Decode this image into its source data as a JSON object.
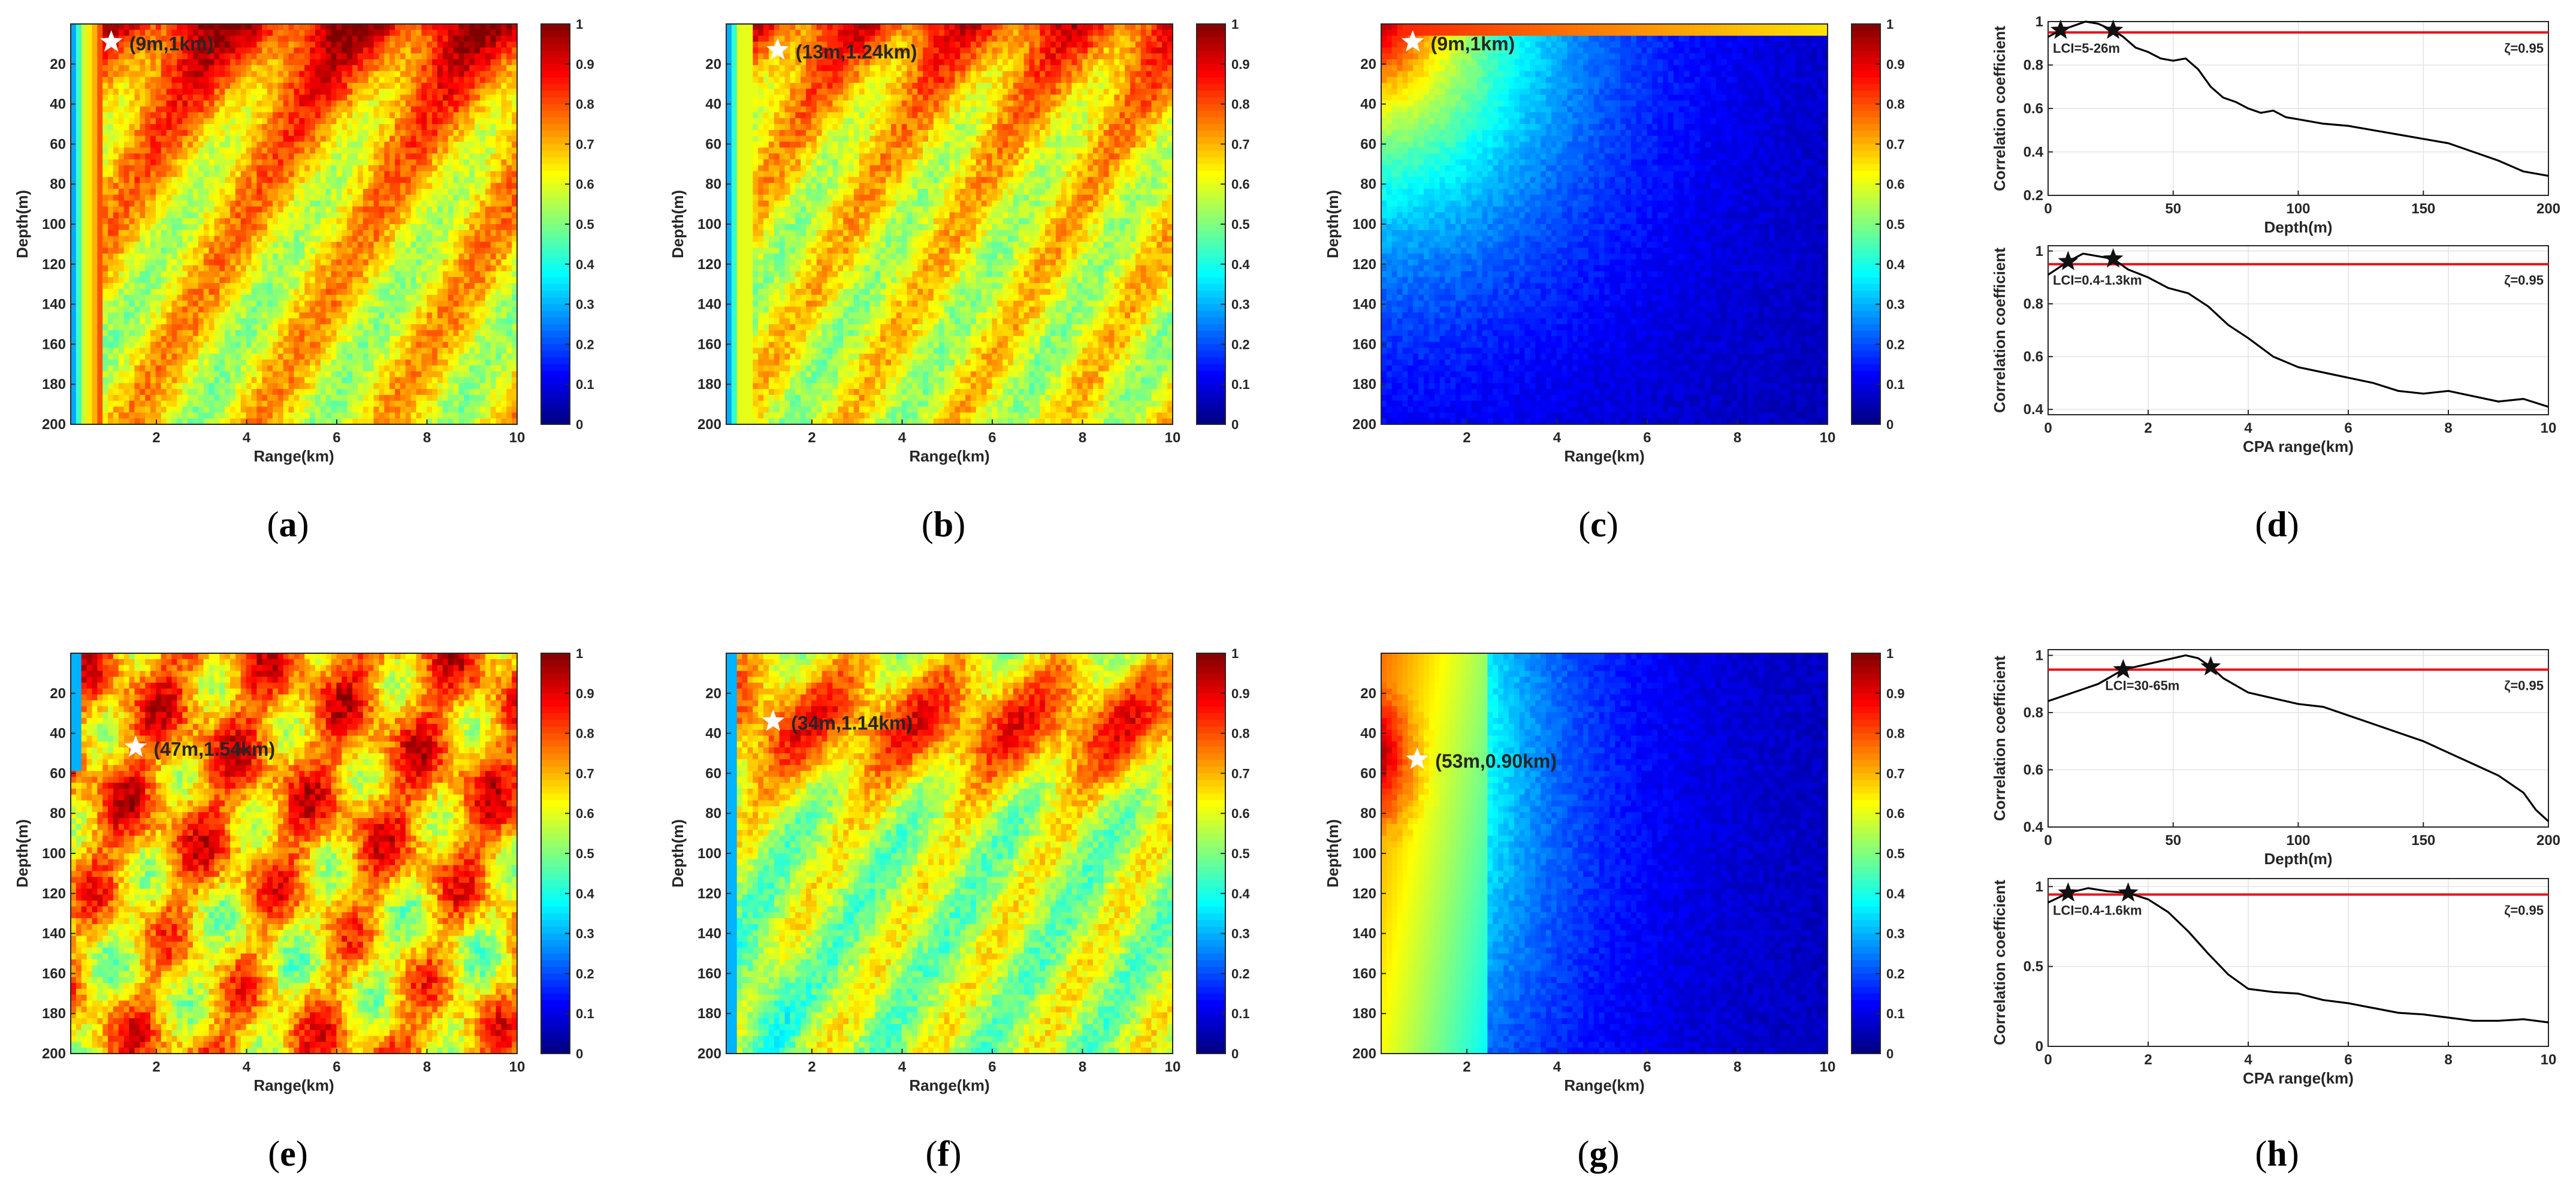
{
  "chart_data": {
    "type": "heatmap",
    "colormap": "jet",
    "colorbar_ticks": [
      "0",
      "0.1",
      "0.2",
      "0.3",
      "0.4",
      "0.5",
      "0.6",
      "0.7",
      "0.8",
      "0.9",
      "1"
    ],
    "heatmaps": [
      {
        "id": "a",
        "caption": [
          "(",
          "a",
          ")"
        ],
        "xlabel": "Range(km)",
        "ylabel": "Depth(m)",
        "xlim": [
          0.1,
          10
        ],
        "ylim": [
          200,
          0
        ],
        "xticks": [
          2,
          4,
          6,
          8,
          10
        ],
        "yticks": [
          20,
          40,
          60,
          80,
          100,
          120,
          140,
          160,
          180,
          200
        ],
        "pattern": "high-near-surface",
        "star": {
          "range_km": 1.0,
          "depth_m": 9,
          "label": "(9m,1km)"
        }
      },
      {
        "id": "b",
        "caption": [
          "(",
          "b",
          ")"
        ],
        "xlabel": "Range(km)",
        "ylabel": "Depth(m)",
        "xlim": [
          0.1,
          10
        ],
        "ylim": [
          200,
          0
        ],
        "xticks": [
          2,
          4,
          6,
          8,
          10
        ],
        "yticks": [
          20,
          40,
          60,
          80,
          100,
          120,
          140,
          160,
          180,
          200
        ],
        "pattern": "medium-high",
        "star": {
          "range_km": 1.24,
          "depth_m": 13,
          "label": "(13m,1.24km)"
        }
      },
      {
        "id": "c",
        "caption": [
          "(",
          "c",
          ")"
        ],
        "xlabel": "Range(km)",
        "ylabel": "Depth(m)",
        "xlim": [
          0.1,
          10
        ],
        "ylim": [
          200,
          0
        ],
        "xticks": [
          2,
          4,
          6,
          8,
          10
        ],
        "yticks": [
          20,
          40,
          60,
          80,
          100,
          120,
          140,
          160,
          180,
          200
        ],
        "pattern": "decay",
        "star": {
          "range_km": 0.8,
          "depth_m": 9,
          "label": "(9m,1km)"
        }
      },
      {
        "id": "e",
        "caption": [
          "(",
          "e",
          ")"
        ],
        "xlabel": "Range(km)",
        "ylabel": "Depth(m)",
        "xlim": [
          0.1,
          10
        ],
        "ylim": [
          200,
          0
        ],
        "xticks": [
          2,
          4,
          6,
          8,
          10
        ],
        "yticks": [
          20,
          40,
          60,
          80,
          100,
          120,
          140,
          160,
          180,
          200
        ],
        "pattern": "high-broad",
        "star": {
          "range_km": 1.54,
          "depth_m": 47,
          "label": "(47m,1.54km)"
        }
      },
      {
        "id": "f",
        "caption": [
          "(",
          "f",
          ")"
        ],
        "xlabel": "Range(km)",
        "ylabel": "Depth(m)",
        "xlim": [
          0.1,
          10
        ],
        "ylim": [
          200,
          0
        ],
        "xticks": [
          2,
          4,
          6,
          8,
          10
        ],
        "yticks": [
          20,
          40,
          60,
          80,
          100,
          120,
          140,
          160,
          180,
          200
        ],
        "pattern": "medium-low-deep",
        "star": {
          "range_km": 1.14,
          "depth_m": 34,
          "label": "(34m,1.14km)"
        }
      },
      {
        "id": "g",
        "caption": [
          "(",
          "g",
          ")"
        ],
        "xlabel": "Range(km)",
        "ylabel": "Depth(m)",
        "xlim": [
          0.1,
          10
        ],
        "ylim": [
          200,
          0
        ],
        "xticks": [
          2,
          4,
          6,
          8,
          10
        ],
        "yticks": [
          20,
          40,
          60,
          80,
          100,
          120,
          140,
          160,
          180,
          200
        ],
        "pattern": "decay-left",
        "star": {
          "range_km": 0.9,
          "depth_m": 53,
          "label": "(53m,0.90km)"
        }
      }
    ],
    "line_groups": [
      {
        "id": "d",
        "caption": [
          "(",
          "d",
          ")"
        ],
        "plots": [
          {
            "type": "line",
            "xlabel": "Depth(m)",
            "ylabel": "Correlation coefficient",
            "xlim": [
              0,
              200
            ],
            "ylim": [
              0.2,
              1.0
            ],
            "xticks": [
              "0",
              "50",
              "100",
              "150",
              "200"
            ],
            "yticks": [
              "0.2",
              "0.4",
              "0.6",
              "0.8",
              "1"
            ],
            "threshold": 0.95,
            "threshold_label": "ζ=0.95",
            "interval_label": "LCI=5-26m",
            "stars": [
              [
                5,
                0.96
              ],
              [
                26,
                0.96
              ]
            ],
            "x": [
              0,
              5,
              10,
              15,
              20,
              26,
              30,
              35,
              40,
              45,
              50,
              55,
              60,
              65,
              70,
              75,
              80,
              85,
              90,
              95,
              100,
              110,
              120,
              130,
              140,
              150,
              160,
              170,
              180,
              190,
              200
            ],
            "y": [
              0.93,
              0.96,
              0.98,
              1.0,
              0.99,
              0.96,
              0.93,
              0.88,
              0.86,
              0.83,
              0.82,
              0.83,
              0.78,
              0.7,
              0.65,
              0.63,
              0.6,
              0.58,
              0.59,
              0.56,
              0.55,
              0.53,
              0.52,
              0.5,
              0.48,
              0.46,
              0.44,
              0.4,
              0.36,
              0.31,
              0.29
            ]
          },
          {
            "type": "line",
            "xlabel": "CPA range(km)",
            "ylabel": "Correlation coefficient",
            "xlim": [
              0,
              10
            ],
            "ylim": [
              0.38,
              1.02
            ],
            "xticks": [
              "0",
              "2",
              "4",
              "6",
              "8",
              "10"
            ],
            "yticks": [
              "0.4",
              "0.6",
              "0.8",
              "1"
            ],
            "threshold": 0.95,
            "threshold_label": "ζ=0.95",
            "interval_label": "LCI=0.4-1.3km",
            "stars": [
              [
                0.4,
                0.96
              ],
              [
                1.3,
                0.97
              ]
            ],
            "x": [
              0,
              0.4,
              0.7,
              1.0,
              1.3,
              1.6,
              2.0,
              2.4,
              2.8,
              3.2,
              3.6,
              4.0,
              4.5,
              5.0,
              5.5,
              6.0,
              6.5,
              7.0,
              7.5,
              8.0,
              8.5,
              9.0,
              9.5,
              10
            ],
            "y": [
              0.91,
              0.96,
              0.99,
              0.98,
              0.97,
              0.93,
              0.9,
              0.86,
              0.84,
              0.79,
              0.72,
              0.67,
              0.6,
              0.56,
              0.54,
              0.52,
              0.5,
              0.47,
              0.46,
              0.47,
              0.45,
              0.43,
              0.44,
              0.41
            ]
          }
        ]
      },
      {
        "id": "h",
        "caption": [
          "(",
          "h",
          ")"
        ],
        "plots": [
          {
            "type": "line",
            "xlabel": "Depth(m)",
            "ylabel": "Correlation coefficient",
            "xlim": [
              0,
              200
            ],
            "ylim": [
              0.4,
              1.02
            ],
            "xticks": [
              "0",
              "50",
              "100",
              "150",
              "200"
            ],
            "yticks": [
              "0.4",
              "0.6",
              "0.8",
              "1"
            ],
            "threshold": 0.95,
            "threshold_label": "ζ=0.95",
            "interval_label": "LCI=30-65m",
            "stars": [
              [
                30,
                0.95
              ],
              [
                65,
                0.96
              ]
            ],
            "x": [
              0,
              10,
              20,
              30,
              40,
              50,
              55,
              60,
              65,
              70,
              80,
              90,
              100,
              110,
              120,
              130,
              140,
              150,
              160,
              170,
              180,
              190,
              195,
              200
            ],
            "y": [
              0.84,
              0.87,
              0.9,
              0.95,
              0.97,
              0.99,
              1.0,
              0.99,
              0.96,
              0.92,
              0.87,
              0.85,
              0.83,
              0.82,
              0.79,
              0.76,
              0.73,
              0.7,
              0.66,
              0.62,
              0.58,
              0.52,
              0.46,
              0.42
            ]
          },
          {
            "type": "line",
            "xlabel": "CPA range(km)",
            "ylabel": "Correlation coefficient",
            "xlim": [
              0,
              10
            ],
            "ylim": [
              0,
              1.05
            ],
            "xticks": [
              "0",
              "2",
              "4",
              "6",
              "8",
              "10"
            ],
            "yticks": [
              "0",
              "0.5",
              "1"
            ],
            "threshold": 0.95,
            "threshold_label": "ζ=0.95",
            "interval_label": "LCI=0.4-1.6km",
            "stars": [
              [
                0.4,
                0.96
              ],
              [
                1.6,
                0.96
              ]
            ],
            "x": [
              0,
              0.4,
              0.8,
              1.2,
              1.6,
              2.0,
              2.4,
              2.8,
              3.2,
              3.6,
              4.0,
              4.5,
              5.0,
              5.5,
              6.0,
              6.5,
              7.0,
              7.5,
              8.0,
              8.5,
              9.0,
              9.5,
              10
            ],
            "y": [
              0.9,
              0.96,
              0.99,
              0.97,
              0.96,
              0.92,
              0.84,
              0.72,
              0.58,
              0.45,
              0.36,
              0.34,
              0.33,
              0.29,
              0.27,
              0.24,
              0.21,
              0.2,
              0.18,
              0.16,
              0.16,
              0.17,
              0.15
            ]
          }
        ]
      }
    ]
  }
}
